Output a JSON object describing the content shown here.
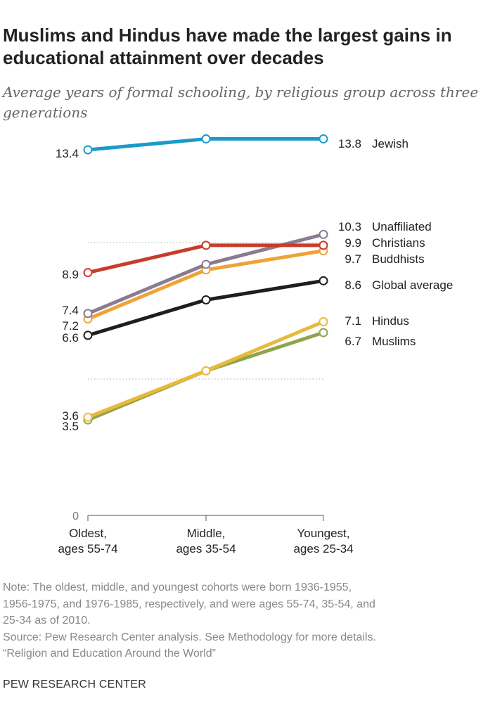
{
  "header": {
    "title": "Muslims and Hindus have made the largest gains in educational attainment over decades",
    "subtitle": "Average years of formal schooling, by religious group across three generations"
  },
  "chart_data": {
    "type": "line",
    "categories": [
      "Oldest,\nages 55-74",
      "Middle,\nages 35-54",
      "Youngest,\nages 25-34"
    ],
    "ylim": [
      0,
      14
    ],
    "yticks": [
      0
    ],
    "grid": "dotted reference lines",
    "series": [
      {
        "name": "Jewish",
        "values": [
          13.4,
          13.8,
          13.8
        ],
        "start_label": "13.4",
        "end_label": "13.8",
        "color": "#1b9ac9"
      },
      {
        "name": "Unaffiliated",
        "values": [
          7.4,
          9.2,
          10.3
        ],
        "start_label": "7.4",
        "end_label": "10.3",
        "color": "#8a7a92"
      },
      {
        "name": "Christians",
        "values": [
          8.9,
          9.9,
          9.9
        ],
        "start_label": "8.9",
        "end_label": "9.9",
        "color": "#c83c2b"
      },
      {
        "name": "Buddhists",
        "values": [
          7.2,
          9.0,
          9.7
        ],
        "start_label": "7.2",
        "end_label": "9.7",
        "color": "#eea336"
      },
      {
        "name": "Global average",
        "values": [
          6.6,
          7.9,
          8.6
        ],
        "start_label": "6.6",
        "end_label": "8.6",
        "color": "#1e1e1e"
      },
      {
        "name": "Hindus",
        "values": [
          3.6,
          5.3,
          7.1
        ],
        "start_label": "3.6",
        "end_label": "7.1",
        "color": "#e9b93b"
      },
      {
        "name": "Muslims",
        "values": [
          3.5,
          5.3,
          6.7
        ],
        "start_label": "3.5",
        "end_label": "6.7",
        "color": "#8ea54d"
      }
    ]
  },
  "note": {
    "text": "Note: The oldest, middle, and youngest cohorts were born 1936-1955,\n1956-1975, and 1976-1985, respectively, and were ages 55-74, 35-54, and\n25-34 as of 2010.",
    "source": "Source: Pew Research Center analysis. See Methodology for more details.",
    "report": "“Religion and Education Around the World”"
  },
  "footer": {
    "org": "PEW RESEARCH CENTER"
  },
  "colors": {
    "grid": "#aaaaaa",
    "axis": "#555555"
  }
}
